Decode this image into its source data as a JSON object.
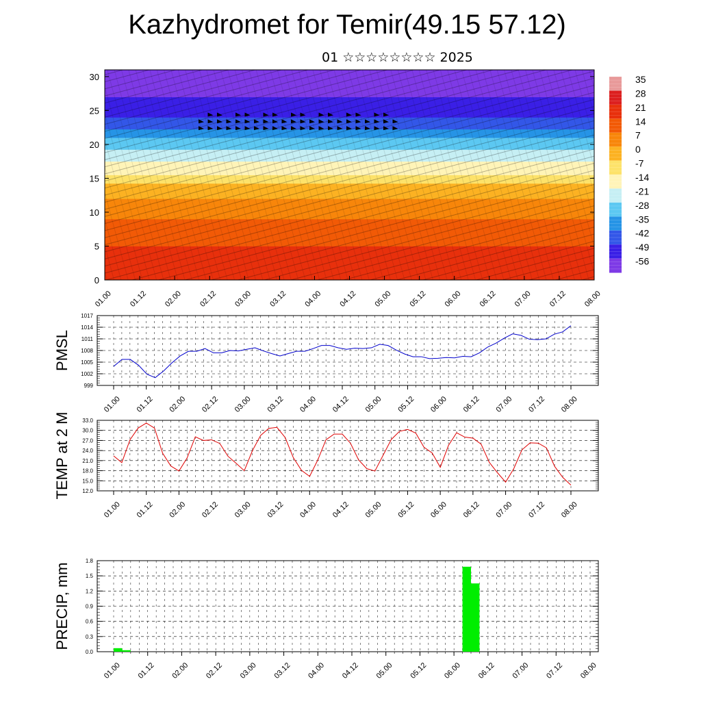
{
  "title": "Kazhydromet for Temir(49.15 57.12)",
  "subtitle": "01 ☆☆☆☆☆☆☆☆ 2025",
  "colors": {
    "pmsl_line": "#0000cc",
    "temp_line": "#e00000",
    "precip_bar": "#00ee00",
    "wind_arrows": "#000000"
  },
  "chart_data": [
    {
      "id": "cross_section",
      "type": "heatmap",
      "title": "",
      "ylabel": "",
      "x_ticks": [
        "01.00",
        "01.12",
        "02.00",
        "02.12",
        "03.00",
        "03.12",
        "04.00",
        "04.12",
        "05.00",
        "05.12",
        "06.00",
        "06.12",
        "07.00",
        "07.12",
        "08.00"
      ],
      "y_ticks": [
        0,
        5,
        10,
        15,
        20,
        25,
        30
      ],
      "ylim": [
        0,
        31
      ],
      "overlay": "wind vectors",
      "colorbar": {
        "labels": [
          "35",
          "28",
          "21",
          "14",
          "7",
          "0",
          "-7",
          "-14",
          "-21",
          "-28",
          "-35",
          "-42",
          "-49",
          "-56"
        ],
        "palette": [
          "#e89a9a",
          "#dc1f1f",
          "#e8300c",
          "#f25a06",
          "#f8860a",
          "#fcb222",
          "#fde26a",
          "#fff4b8",
          "#c6eff4",
          "#5cc8f2",
          "#2694e6",
          "#3357e8",
          "#3a1fe6",
          "#7e3ae6"
        ]
      }
    },
    {
      "id": "pmsl",
      "type": "line",
      "ylabel": "PMSL",
      "ylim": [
        999,
        1017
      ],
      "y_ticks": [
        "999",
        "1002",
        "1005",
        "1008",
        "1011",
        "1014",
        "1017"
      ],
      "x_ticks": [
        "01.00",
        "01.12",
        "02.00",
        "02.12",
        "03.00",
        "03.12",
        "04.00",
        "04.12",
        "05.00",
        "05.12",
        "06.00",
        "06.12",
        "07.00",
        "07.12",
        "08.00"
      ],
      "series": [
        {
          "values": [
            1003.9,
            1005.7,
            1005.7,
            1004.2,
            1001.9,
            1001.0,
            1002.7,
            1004.8,
            1006.6,
            1007.8,
            1007.8,
            1008.5,
            1007.4,
            1007.4,
            1008.0,
            1007.9,
            1008.3,
            1008.7,
            1007.9,
            1007.2,
            1006.6,
            1007.2,
            1007.8,
            1007.8,
            1008.5,
            1009.3,
            1009.3,
            1008.7,
            1008.3,
            1008.6,
            1008.5,
            1008.7,
            1009.6,
            1009.3,
            1008.1,
            1007.1,
            1006.4,
            1006.4,
            1005.9,
            1006.0,
            1006.2,
            1006.1,
            1006.5,
            1006.4,
            1007.4,
            1008.9,
            1009.9,
            1011.2,
            1012.3,
            1011.9,
            1010.9,
            1010.8,
            1011.0,
            1012.2,
            1012.8,
            1014.4
          ]
        }
      ]
    },
    {
      "id": "temp2m",
      "type": "line",
      "ylabel": "TEMP at 2 M",
      "ylim": [
        12,
        33
      ],
      "y_ticks": [
        "12.0",
        "15.0",
        "18.0",
        "21.0",
        "24.0",
        "27.0",
        "30.0",
        "33.0"
      ],
      "x_ticks": [
        "01.00",
        "01.12",
        "02.00",
        "02.12",
        "03.00",
        "03.12",
        "04.00",
        "04.12",
        "05.00",
        "05.12",
        "06.00",
        "06.12",
        "07.00",
        "07.12",
        "08.00"
      ],
      "series": [
        {
          "values": [
            22.4,
            20.4,
            27.2,
            30.7,
            32.2,
            30.7,
            23.2,
            19.4,
            17.9,
            21.8,
            28.1,
            27.0,
            27.2,
            26.1,
            22.3,
            20.2,
            18.0,
            24.0,
            28.5,
            30.6,
            30.9,
            27.9,
            21.9,
            18.1,
            16.3,
            21.2,
            27.2,
            28.9,
            28.9,
            26.2,
            21.2,
            18.6,
            17.9,
            22.6,
            27.3,
            29.7,
            30.3,
            29.2,
            25.0,
            23.3,
            19.0,
            25.5,
            29.3,
            28.0,
            27.7,
            25.9,
            20.5,
            17.4,
            14.6,
            18.6,
            24.2,
            26.3,
            26.2,
            24.8,
            19.3,
            16.0,
            13.7
          ]
        }
      ]
    },
    {
      "id": "precip",
      "type": "bar",
      "ylabel": "PRECIP, mm",
      "ylim": [
        0,
        1.8
      ],
      "y_ticks": [
        "0.0",
        "0.3",
        "0.6",
        "0.9",
        "1.2",
        "1.5",
        "1.8"
      ],
      "x_ticks": [
        "01.00",
        "01.12",
        "02.00",
        "02.12",
        "03.00",
        "03.12",
        "04.00",
        "04.12",
        "05.00",
        "05.12",
        "06.00",
        "06.12",
        "07.00",
        "07.12",
        "08.00"
      ],
      "x_hours": [
        3,
        6,
        126,
        129,
        132
      ],
      "values": [
        0.07,
        0.03,
        1.68,
        1.35,
        0.0
      ]
    }
  ]
}
